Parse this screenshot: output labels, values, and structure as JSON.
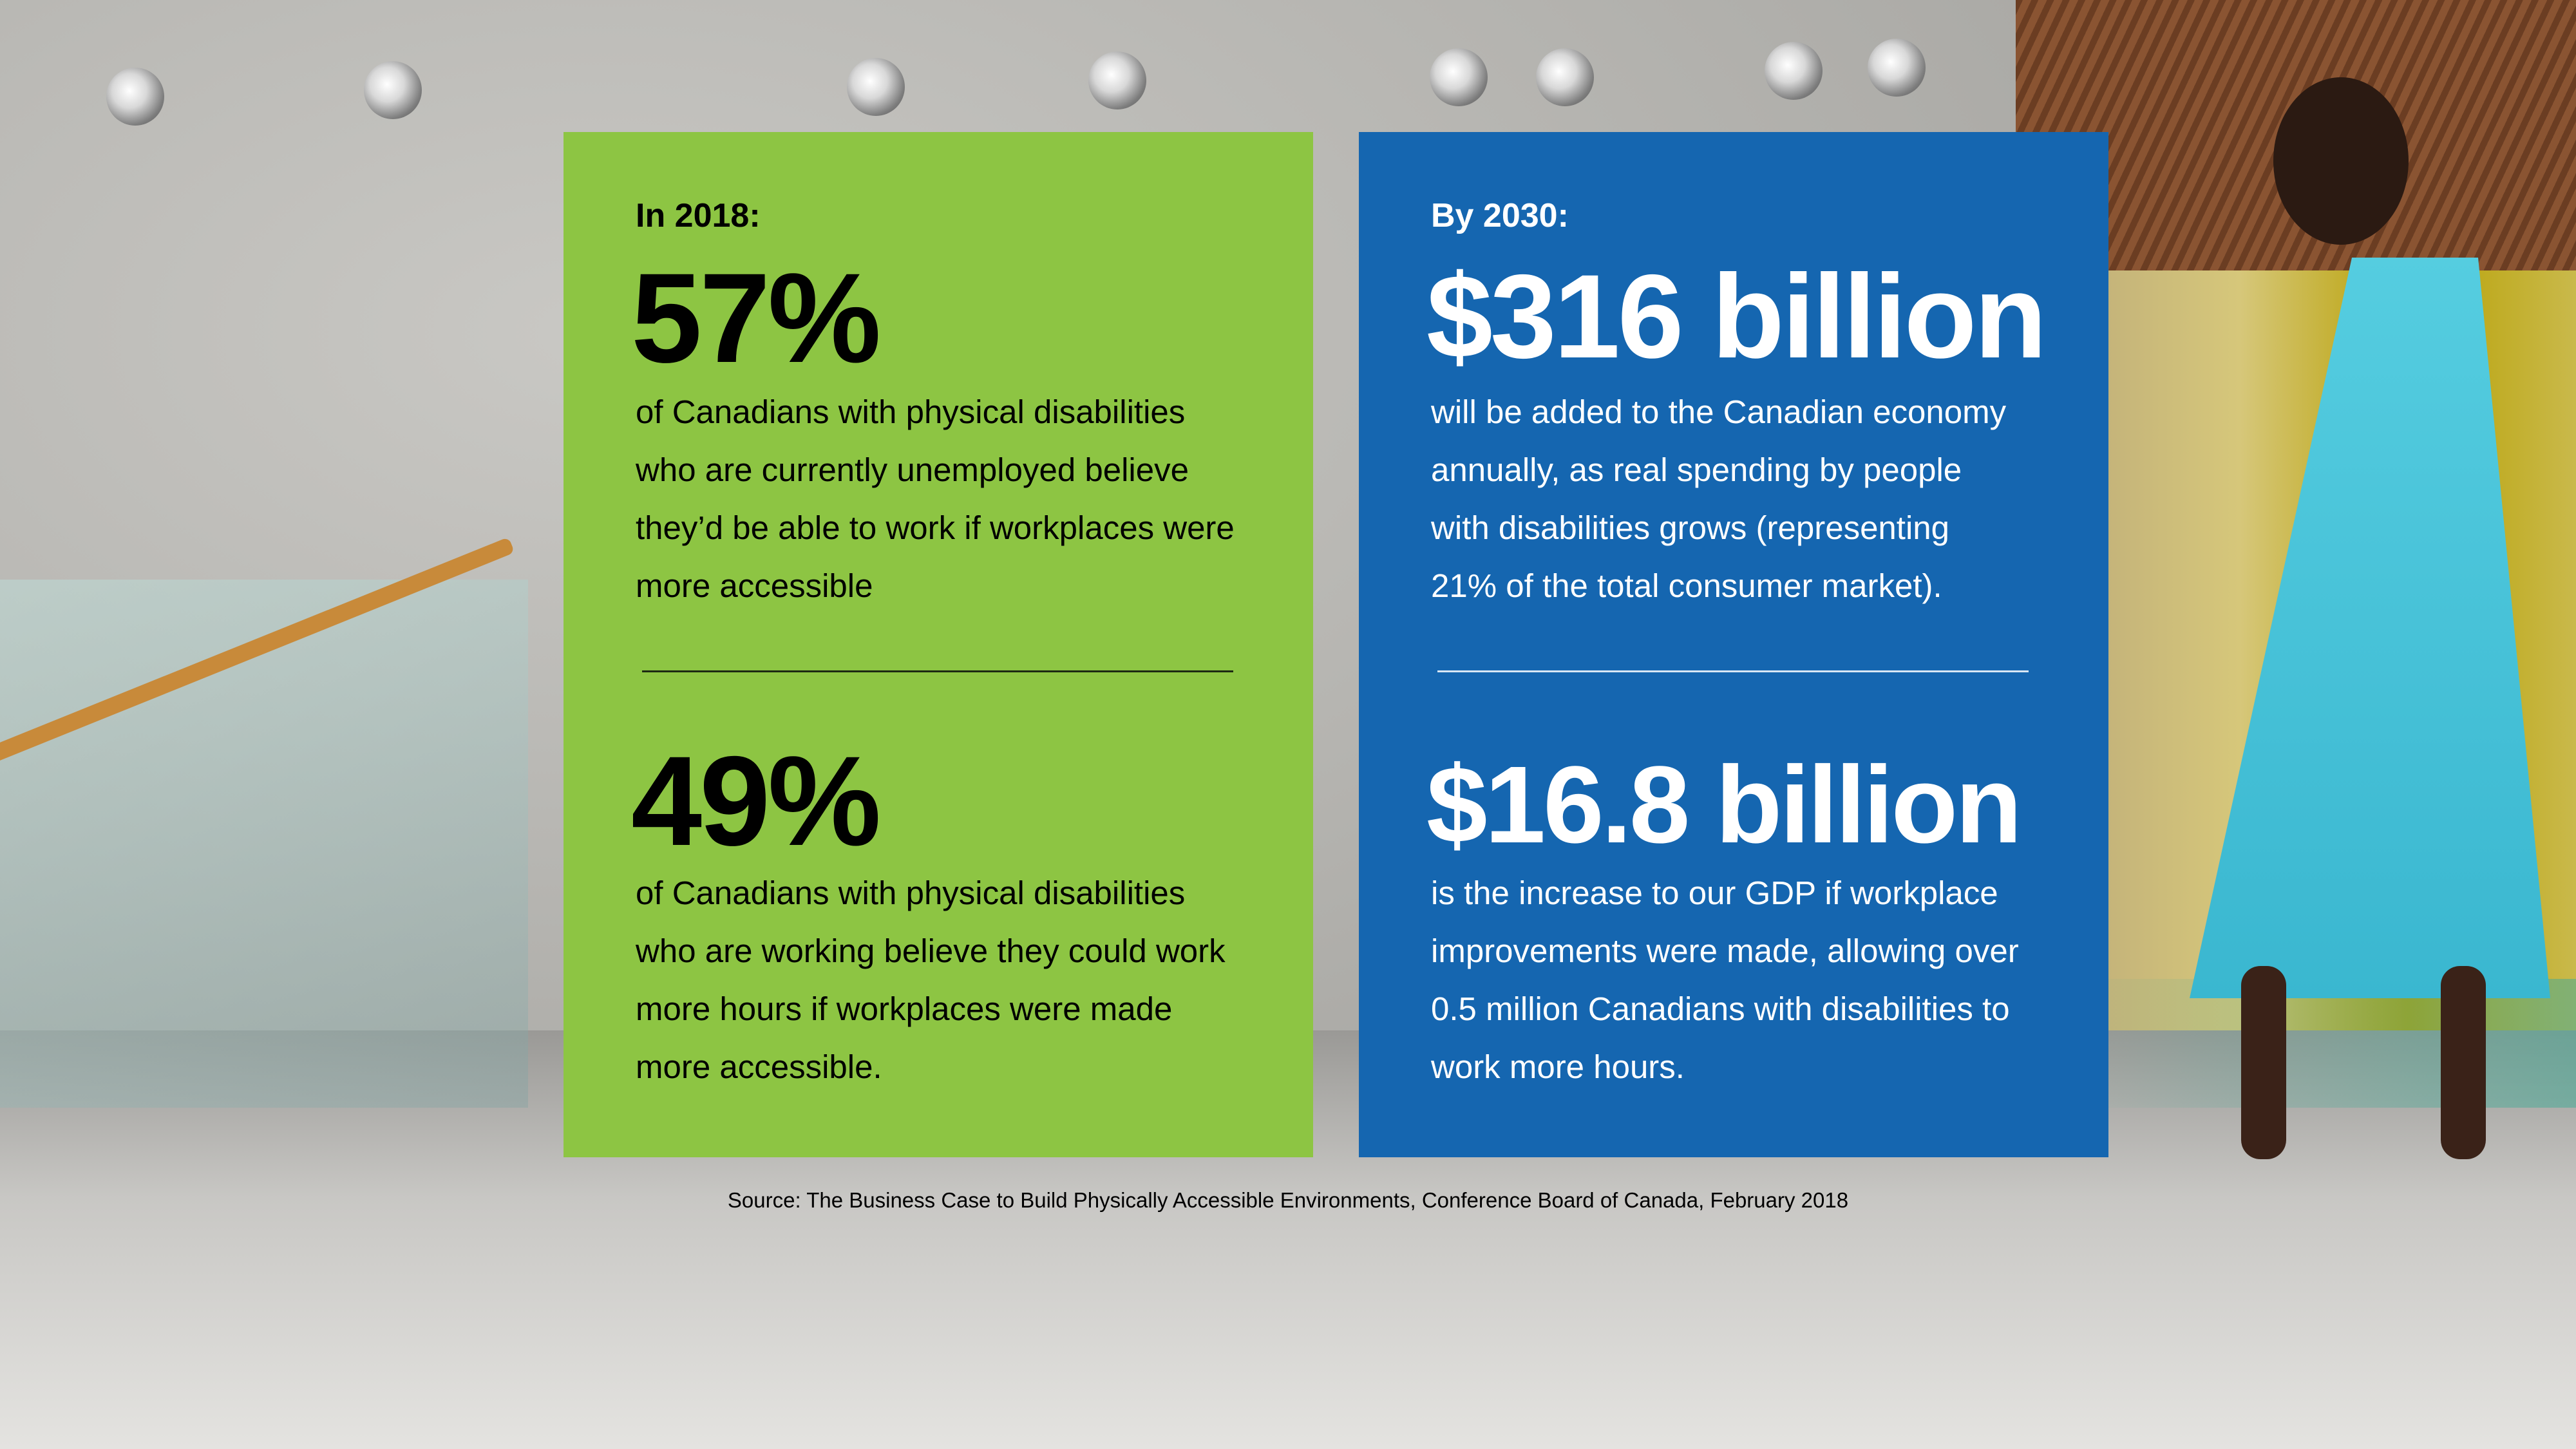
{
  "colors": {
    "green_panel": "#8dc543",
    "blue_panel": "#1566b0"
  },
  "left_panel": {
    "heading": "In 2018:",
    "stat1": {
      "value": "57%",
      "lines": [
        "of Canadians with physical disabilities",
        "who are currently unemployed believe",
        "they’d be able to work if workplaces were",
        "more accessible"
      ]
    },
    "stat2": {
      "value": "49%",
      "lines": [
        "of Canadians with physical disabilities",
        "who are working believe they could work",
        "more hours if workplaces were made",
        "more accessible."
      ]
    }
  },
  "right_panel": {
    "heading": "By 2030:",
    "stat1": {
      "value": "$316 billion",
      "lines": [
        "will be added to the Canadian economy",
        "annually, as real spending by people",
        "with disabilities grows (representing",
        "21% of the total consumer market)."
      ]
    },
    "stat2": {
      "value": "$16.8 billion",
      "lines": [
        "is the increase to our GDP if workplace",
        "improvements were made, allowing over",
        "0.5 million Canadians with disabilities to",
        "work more hours."
      ]
    }
  },
  "source": "Source: The Business Case to Build Physically Accessible Environments, Conference Board of Canada, February 2018"
}
